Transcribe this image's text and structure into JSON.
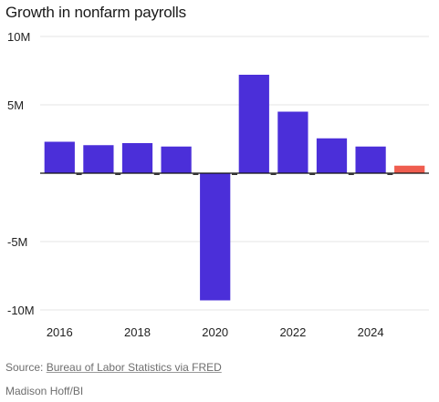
{
  "chart_data": {
    "type": "bar",
    "title": "Growth in nonfarm payrolls",
    "categories": [
      "2016",
      "2017",
      "2018",
      "2019",
      "2020",
      "2021",
      "2022",
      "2023",
      "2024",
      "2025"
    ],
    "values": [
      2.3,
      2.05,
      2.2,
      1.95,
      -9.3,
      7.2,
      4.5,
      2.55,
      1.95,
      0.55
    ],
    "highlight_index": 9,
    "ylim": [
      -10,
      10
    ],
    "yticks": [
      10,
      5,
      -5,
      -10
    ],
    "ytick_labels": [
      "10M",
      "5M",
      "-5M",
      "-10M"
    ],
    "xtick_labels": [
      "2016",
      "2018",
      "2020",
      "2022",
      "2024"
    ],
    "xlabel": "",
    "ylabel": "",
    "grid": true,
    "legend": "none"
  },
  "colors": {
    "bar": "#4b2fd9",
    "highlight": "#ef5d4f",
    "axis": "#111111",
    "grid": "#e6e6e6"
  },
  "footer": {
    "source_prefix": "Source: ",
    "source_link": "Bureau of Labor Statistics via FRED",
    "credit": "Madison Hoff/BI"
  }
}
